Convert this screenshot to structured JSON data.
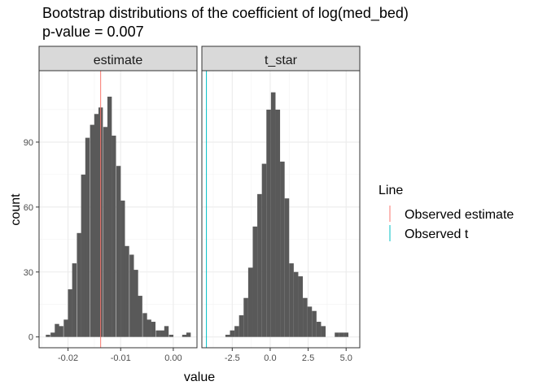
{
  "chart_data": {
    "type": "bar",
    "title": "Bootstrap distributions of the coefficient of log(med_bed)",
    "subtitle": "p-value = 0.007",
    "xlabel": "value",
    "ylabel": "count",
    "ylim": [
      -5,
      123
    ],
    "y_ticks": [
      0,
      30,
      60,
      90
    ],
    "grid": true,
    "legend": {
      "title": "Line",
      "position": "right",
      "items": [
        {
          "label": "Observed estimate",
          "color": "#F8766D"
        },
        {
          "label": "Observed t",
          "color": "#00BFC4"
        }
      ]
    },
    "panels": [
      {
        "strip": "estimate",
        "xlim": [
          -0.0255,
          0.0045
        ],
        "x_ticks": [
          -0.02,
          -0.01,
          0.0
        ],
        "x_tick_labels": [
          "-0.02",
          "-0.01",
          "0.00"
        ],
        "bin_width": 0.000833,
        "bins": [
          {
            "x": -0.0238,
            "count": 1
          },
          {
            "x": -0.0229,
            "count": 2
          },
          {
            "x": -0.0221,
            "count": 6
          },
          {
            "x": -0.0213,
            "count": 5
          },
          {
            "x": -0.0204,
            "count": 8
          },
          {
            "x": -0.0196,
            "count": 22
          },
          {
            "x": -0.0188,
            "count": 34
          },
          {
            "x": -0.0179,
            "count": 48
          },
          {
            "x": -0.0171,
            "count": 75
          },
          {
            "x": -0.0163,
            "count": 92
          },
          {
            "x": -0.0154,
            "count": 98
          },
          {
            "x": -0.0146,
            "count": 103
          },
          {
            "x": -0.0138,
            "count": 106
          },
          {
            "x": -0.0129,
            "count": 97
          },
          {
            "x": -0.0121,
            "count": 111
          },
          {
            "x": -0.0113,
            "count": 93
          },
          {
            "x": -0.0104,
            "count": 79
          },
          {
            "x": -0.0096,
            "count": 63
          },
          {
            "x": -0.0088,
            "count": 42
          },
          {
            "x": -0.0079,
            "count": 38
          },
          {
            "x": -0.0071,
            "count": 31
          },
          {
            "x": -0.0063,
            "count": 19
          },
          {
            "x": -0.0054,
            "count": 11
          },
          {
            "x": -0.0046,
            "count": 8
          },
          {
            "x": -0.0038,
            "count": 7
          },
          {
            "x": -0.0029,
            "count": 3
          },
          {
            "x": -0.0021,
            "count": 3
          },
          {
            "x": -0.0013,
            "count": 5
          },
          {
            "x": -0.0004,
            "count": 1
          },
          {
            "x": 0.0004,
            "count": 0
          },
          {
            "x": 0.0013,
            "count": 0
          },
          {
            "x": 0.0021,
            "count": 1
          },
          {
            "x": 0.0029,
            "count": 2
          }
        ],
        "vline": {
          "x": -0.0138,
          "color": "#F8766D"
        }
      },
      {
        "strip": "t_star",
        "xlim": [
          -4.5,
          5.9
        ],
        "x_ticks": [
          -2.5,
          0.0,
          2.5,
          5.0
        ],
        "x_tick_labels": [
          "-2.5",
          "0.0",
          "2.5",
          "5.0"
        ],
        "bin_width": 0.3,
        "bins": [
          {
            "x": -2.8,
            "count": 1
          },
          {
            "x": -2.5,
            "count": 3
          },
          {
            "x": -2.2,
            "count": 5
          },
          {
            "x": -1.9,
            "count": 10
          },
          {
            "x": -1.6,
            "count": 18
          },
          {
            "x": -1.3,
            "count": 32
          },
          {
            "x": -1.0,
            "count": 51
          },
          {
            "x": -0.7,
            "count": 66
          },
          {
            "x": -0.4,
            "count": 80
          },
          {
            "x": -0.1,
            "count": 105
          },
          {
            "x": 0.2,
            "count": 113
          },
          {
            "x": 0.5,
            "count": 105
          },
          {
            "x": 0.8,
            "count": 81
          },
          {
            "x": 1.1,
            "count": 64
          },
          {
            "x": 1.4,
            "count": 34
          },
          {
            "x": 1.7,
            "count": 30
          },
          {
            "x": 2.0,
            "count": 28
          },
          {
            "x": 2.3,
            "count": 18
          },
          {
            "x": 2.6,
            "count": 14
          },
          {
            "x": 2.9,
            "count": 12
          },
          {
            "x": 3.2,
            "count": 7
          },
          {
            "x": 3.5,
            "count": 5
          },
          {
            "x": 3.8,
            "count": 0
          },
          {
            "x": 4.1,
            "count": 0
          },
          {
            "x": 4.4,
            "count": 2
          },
          {
            "x": 4.7,
            "count": 2
          },
          {
            "x": 5.0,
            "count": 2
          }
        ],
        "vline": {
          "x": -4.2,
          "color": "#00BFC4"
        }
      }
    ]
  }
}
